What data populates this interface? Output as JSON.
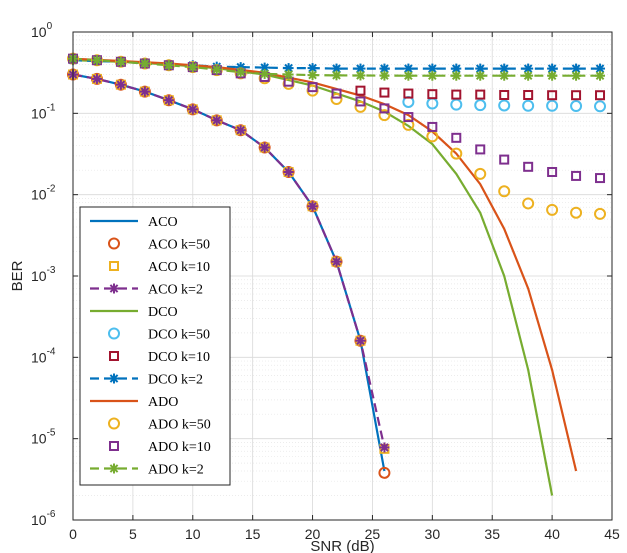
{
  "chart_data": {
    "type": "line",
    "title": "",
    "xlabel": "SNR (dB)",
    "ylabel": "BER",
    "xlim": [
      0,
      45
    ],
    "ylim": [
      1e-06,
      1
    ],
    "yscale": "log",
    "grid": true,
    "legend_position": "bottom-left",
    "x_ticks": [
      "0",
      "5",
      "10",
      "15",
      "20",
      "25",
      "30",
      "35",
      "40",
      "45"
    ],
    "y_tick_bases": [
      "10",
      "10",
      "10",
      "10",
      "10",
      "10",
      "10"
    ],
    "y_tick_exps": [
      "-6",
      "-5",
      "-4",
      "-3",
      "-2",
      "-1",
      "0"
    ],
    "series": [
      {
        "name": "ACO",
        "color": "#0072BD",
        "style": "solid",
        "marker": "none",
        "x": [
          0,
          2,
          4,
          6,
          8,
          10,
          12,
          14,
          16,
          18,
          20,
          22,
          24,
          26
        ],
        "y": [
          0.3,
          0.265,
          0.225,
          0.185,
          0.145,
          0.112,
          0.082,
          0.062,
          0.038,
          0.019,
          0.0072,
          0.0015,
          0.00016,
          4e-06
        ]
      },
      {
        "name": "ACO k=50",
        "color": "#D95319",
        "style": "none",
        "marker": "circle",
        "x": [
          0,
          2,
          4,
          6,
          8,
          10,
          12,
          14,
          16,
          18,
          20,
          22,
          24,
          26
        ],
        "y": [
          0.3,
          0.265,
          0.225,
          0.185,
          0.145,
          0.112,
          0.082,
          0.062,
          0.038,
          0.019,
          0.0072,
          0.0015,
          0.00016,
          3.8e-06
        ]
      },
      {
        "name": "ACO k=10",
        "color": "#EDB120",
        "style": "none",
        "marker": "square",
        "x": [
          0,
          2,
          4,
          6,
          8,
          10,
          12,
          14,
          16,
          18,
          20,
          22,
          24,
          26
        ],
        "y": [
          0.3,
          0.265,
          0.225,
          0.185,
          0.145,
          0.112,
          0.082,
          0.062,
          0.038,
          0.019,
          0.0072,
          0.0015,
          0.00016,
          7.5e-06
        ]
      },
      {
        "name": "ACO k=2",
        "color": "#7E2F8E",
        "style": "dashed",
        "marker": "asterisk",
        "x": [
          0,
          2,
          4,
          6,
          8,
          10,
          12,
          14,
          16,
          18,
          20,
          22,
          24,
          26
        ],
        "y": [
          0.3,
          0.265,
          0.225,
          0.185,
          0.145,
          0.112,
          0.082,
          0.062,
          0.038,
          0.019,
          0.0072,
          0.0015,
          0.00016,
          7.8e-06
        ]
      },
      {
        "name": "DCO",
        "color": "#77AC30",
        "style": "solid",
        "marker": "none",
        "x": [
          0,
          4,
          8,
          12,
          16,
          20,
          24,
          26,
          28,
          30,
          32,
          34,
          36,
          38,
          40
        ],
        "y": [
          0.45,
          0.43,
          0.4,
          0.36,
          0.3,
          0.22,
          0.14,
          0.105,
          0.07,
          0.042,
          0.018,
          0.006,
          0.001,
          7e-05,
          2e-06
        ]
      },
      {
        "name": "DCO k=50",
        "color": "#4DBEEE",
        "style": "none",
        "marker": "circle",
        "x": [
          28,
          30,
          32,
          34,
          36,
          38,
          40,
          42,
          44
        ],
        "y": [
          0.138,
          0.132,
          0.128,
          0.126,
          0.125,
          0.124,
          0.124,
          0.123,
          0.122
        ]
      },
      {
        "name": "DCO k=10",
        "color": "#A2142F",
        "style": "none",
        "marker": "square",
        "x": [
          24,
          26,
          28,
          30,
          32,
          34,
          36,
          38,
          40,
          42,
          44
        ],
        "y": [
          0.19,
          0.18,
          0.175,
          0.172,
          0.17,
          0.17,
          0.168,
          0.168,
          0.167,
          0.167,
          0.167
        ]
      },
      {
        "name": "DCO k=2",
        "color": "#0072BD",
        "style": "dashed",
        "marker": "asterisk",
        "x": [
          0,
          2,
          4,
          6,
          8,
          10,
          12,
          14,
          16,
          18,
          20,
          22,
          24,
          26,
          28,
          30,
          32,
          34,
          36,
          38,
          40,
          42,
          44
        ],
        "y": [
          0.45,
          0.44,
          0.43,
          0.415,
          0.4,
          0.39,
          0.375,
          0.37,
          0.365,
          0.36,
          0.36,
          0.355,
          0.355,
          0.355,
          0.355,
          0.355,
          0.355,
          0.355,
          0.355,
          0.355,
          0.355,
          0.355,
          0.355
        ]
      },
      {
        "name": "ADO",
        "color": "#D95319",
        "style": "solid",
        "marker": "none",
        "x": [
          0,
          4,
          8,
          12,
          16,
          20,
          24,
          26,
          28,
          30,
          32,
          34,
          36,
          38,
          40,
          42
        ],
        "y": [
          0.47,
          0.44,
          0.41,
          0.37,
          0.315,
          0.24,
          0.165,
          0.13,
          0.095,
          0.06,
          0.032,
          0.0135,
          0.0038,
          0.0007,
          7e-05,
          4e-06
        ]
      },
      {
        "name": "ADO k=50",
        "color": "#EDB120",
        "style": "none",
        "marker": "circle",
        "x": [
          0,
          2,
          4,
          6,
          8,
          10,
          12,
          14,
          16,
          18,
          20,
          22,
          24,
          26,
          28,
          30,
          32,
          34,
          36,
          38,
          40,
          42,
          44
        ],
        "y": [
          0.47,
          0.45,
          0.43,
          0.41,
          0.39,
          0.37,
          0.34,
          0.31,
          0.27,
          0.23,
          0.19,
          0.15,
          0.12,
          0.095,
          0.072,
          0.052,
          0.032,
          0.018,
          0.011,
          0.0078,
          0.0065,
          0.006,
          0.0058
        ]
      },
      {
        "name": "ADO k=10",
        "color": "#7E2F8E",
        "style": "none",
        "marker": "square",
        "x": [
          0,
          2,
          4,
          6,
          8,
          10,
          12,
          14,
          16,
          18,
          20,
          22,
          24,
          26,
          28,
          30,
          32,
          34,
          36,
          38,
          40,
          42,
          44
        ],
        "y": [
          0.47,
          0.45,
          0.43,
          0.41,
          0.39,
          0.37,
          0.34,
          0.31,
          0.28,
          0.245,
          0.21,
          0.175,
          0.14,
          0.115,
          0.09,
          0.068,
          0.05,
          0.036,
          0.027,
          0.022,
          0.019,
          0.017,
          0.016
        ]
      },
      {
        "name": "ADO k=2",
        "color": "#77AC30",
        "style": "dashed",
        "marker": "asterisk",
        "x": [
          0,
          2,
          4,
          6,
          8,
          10,
          12,
          14,
          16,
          18,
          20,
          22,
          24,
          26,
          28,
          30,
          32,
          34,
          36,
          38,
          40,
          42,
          44
        ],
        "y": [
          0.47,
          0.45,
          0.43,
          0.41,
          0.39,
          0.37,
          0.345,
          0.32,
          0.305,
          0.3,
          0.295,
          0.293,
          0.292,
          0.291,
          0.29,
          0.29,
          0.29,
          0.29,
          0.29,
          0.29,
          0.29,
          0.29,
          0.29
        ]
      }
    ]
  }
}
